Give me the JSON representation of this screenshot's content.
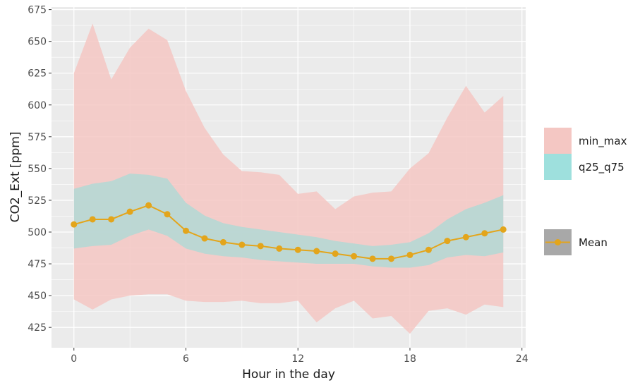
{
  "chart_data": {
    "type": "area",
    "title": "",
    "xlabel": "Hour in the day",
    "ylabel": "CO2_Ext [ppm]",
    "xlim": [
      -1.2,
      24.2
    ],
    "ylim": [
      409,
      677
    ],
    "x_ticks": [
      0,
      6,
      12,
      18,
      24
    ],
    "y_ticks": [
      425,
      450,
      475,
      500,
      525,
      550,
      575,
      600,
      625,
      650,
      675
    ],
    "grid": true,
    "legend_position": "right",
    "x": [
      0,
      1,
      2,
      3,
      4,
      5,
      6,
      7,
      8,
      9,
      10,
      11,
      12,
      13,
      14,
      15,
      16,
      17,
      18,
      19,
      20,
      21,
      22,
      23
    ],
    "series": [
      {
        "name": "min_max",
        "kind": "ribbon",
        "color": "#f4c7c3",
        "lower": [
          447,
          439,
          447,
          450,
          451,
          451,
          446,
          445,
          445,
          446,
          444,
          444,
          446,
          429,
          440,
          446,
          432,
          434,
          420,
          438,
          440,
          435,
          443,
          441
        ],
        "upper": [
          625,
          664,
          620,
          645,
          660,
          651,
          611,
          582,
          561,
          548,
          547,
          545,
          530,
          532,
          518,
          528,
          531,
          532,
          550,
          562,
          590,
          615,
          594,
          607
        ]
      },
      {
        "name": "q25_q75",
        "kind": "ribbon",
        "color": "#b2d8d5",
        "lower": [
          487,
          489,
          490,
          497,
          502,
          497,
          487,
          483,
          481,
          480,
          478,
          477,
          476,
          475,
          475,
          475,
          473,
          472,
          472,
          474,
          480,
          482,
          481,
          484
        ],
        "upper": [
          534,
          538,
          540,
          546,
          545,
          542,
          523,
          513,
          507,
          504,
          502,
          500,
          498,
          496,
          493,
          491,
          489,
          490,
          492,
          499,
          510,
          518,
          523,
          529
        ]
      },
      {
        "name": "Mean",
        "kind": "line",
        "color": "#e3a51b",
        "values": [
          506,
          510,
          510,
          516,
          521,
          514,
          501,
          495,
          492,
          490,
          489,
          487,
          486,
          485,
          483,
          481,
          479,
          479,
          482,
          486,
          493,
          496,
          499,
          502
        ]
      }
    ],
    "legend": [
      {
        "label": "min_max",
        "swatch": "#f4c7c3"
      },
      {
        "label": "q25_q75",
        "swatch": "#9ee0dd"
      },
      {
        "label": "Mean",
        "swatch": "#a8a8a8",
        "line": "#e3a51b"
      }
    ]
  }
}
